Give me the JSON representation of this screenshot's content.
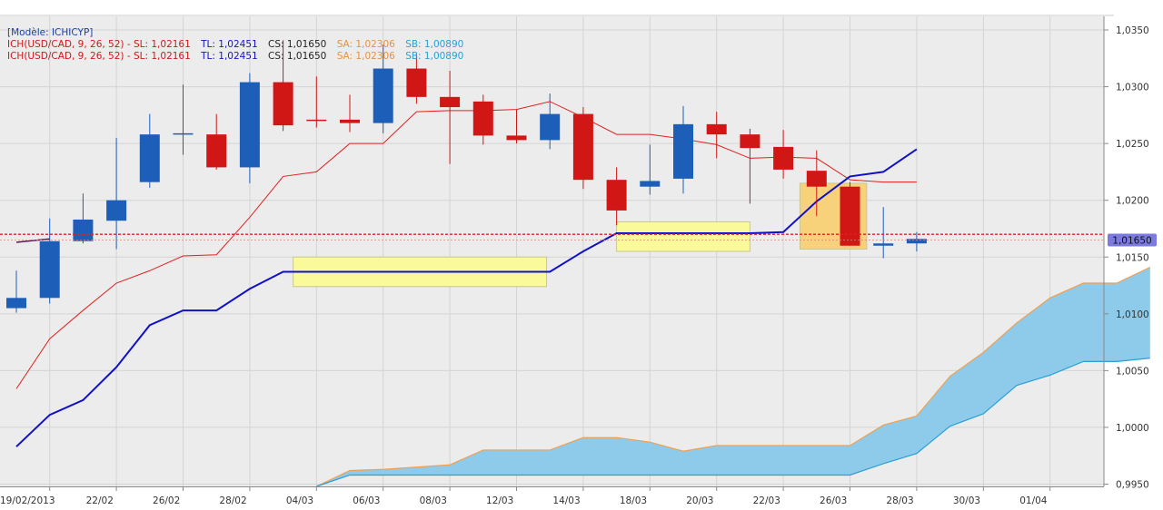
{
  "header": {
    "model_label": "[Modèle: ICHICYP]"
  },
  "legend": [
    {
      "prefix": "ICH(USD/CAD, 9, 26, 52) - ",
      "sl": "SL: 1,02161",
      "tl": "TL: 1,02451",
      "cs": "CS: 1,01650",
      "sa": "SA: 1,02306",
      "sb": "SB: 1,00890"
    },
    {
      "prefix": "ICH(USD/CAD, 9, 26, 52) - ",
      "sl": "SL: 1,02161",
      "tl": "TL: 1,02451",
      "cs": "CS: 1,01650",
      "sa": "SA: 1,02306",
      "sb": "SB: 1,00890"
    }
  ],
  "colors": {
    "bull": "#1d5fb8",
    "bear": "#d11616",
    "tenkan": "#e02020",
    "kijun": "#1010c8",
    "cloud_fill": "#8ecbea",
    "span_a": "#f0a050",
    "span_b": "#2a9fd6",
    "highlight_yellow": "#fafa9a",
    "highlight_orange": "#f8d27a",
    "price_line": "#e02020",
    "current_price_bg": "#7a7ae0",
    "grid": "#d4d4d4"
  },
  "current_price_label": "1,01650",
  "chart_data": {
    "type": "candlestick",
    "instrument": "USD/CAD",
    "ylim": [
      0.9948,
      1.0362
    ],
    "y_ticks": [
      0.995,
      1.0,
      1.005,
      1.01,
      1.015,
      1.02,
      1.025,
      1.03,
      1.035
    ],
    "y_tick_labels": [
      "0,9950",
      "1,0000",
      "1,0050",
      "1,0100",
      "1,0150",
      "1,0200",
      "1,0250",
      "1,0300",
      "1,0350"
    ],
    "x_tick_labels": [
      "19/02/2013",
      "22/02",
      "26/02",
      "28/02",
      "04/03",
      "06/03",
      "08/03",
      "12/03",
      "14/03",
      "18/03",
      "20/03",
      "22/03",
      "26/03",
      "28/03",
      "30/03",
      "01/04"
    ],
    "x_tick_index": [
      0,
      2,
      4,
      6,
      8,
      10,
      12,
      14,
      16,
      18,
      20,
      22,
      24,
      26,
      28,
      30
    ],
    "candles": [
      {
        "o": 1.0105,
        "h": 1.0138,
        "l": 1.0101,
        "c": 1.0114
      },
      {
        "o": 1.0114,
        "h": 1.0184,
        "l": 1.0109,
        "c": 1.0164
      },
      {
        "o": 1.0164,
        "h": 1.0206,
        "l": 1.0162,
        "c": 1.0183
      },
      {
        "o": 1.0182,
        "h": 1.0255,
        "l": 1.0157,
        "c": 1.02
      },
      {
        "o": 1.0216,
        "h": 1.0276,
        "l": 1.0211,
        "c": 1.0258
      },
      {
        "o": 1.0259,
        "h": 1.0302,
        "l": 1.024,
        "c": 1.0259
      },
      {
        "o": 1.0258,
        "h": 1.0276,
        "l": 1.0227,
        "c": 1.0229
      },
      {
        "o": 1.0229,
        "h": 1.0312,
        "l": 1.0215,
        "c": 1.0304
      },
      {
        "o": 1.0304,
        "h": 1.0341,
        "l": 1.0261,
        "c": 1.0266
      },
      {
        "o": 1.0271,
        "h": 1.0309,
        "l": 1.0264,
        "c": 1.027
      },
      {
        "o": 1.0271,
        "h": 1.0293,
        "l": 1.026,
        "c": 1.0268
      },
      {
        "o": 1.0268,
        "h": 1.0337,
        "l": 1.0259,
        "c": 1.0316
      },
      {
        "o": 1.0316,
        "h": 1.0328,
        "l": 1.0285,
        "c": 1.0291
      },
      {
        "o": 1.0291,
        "h": 1.0314,
        "l": 1.0232,
        "c": 1.0282
      },
      {
        "o": 1.0287,
        "h": 1.0293,
        "l": 1.0249,
        "c": 1.0257
      },
      {
        "o": 1.0257,
        "h": 1.028,
        "l": 1.025,
        "c": 1.0253
      },
      {
        "o": 1.0253,
        "h": 1.0294,
        "l": 1.0245,
        "c": 1.0276
      },
      {
        "o": 1.0276,
        "h": 1.0282,
        "l": 1.021,
        "c": 1.0218
      },
      {
        "o": 1.0218,
        "h": 1.0229,
        "l": 1.0178,
        "c": 1.0191
      },
      {
        "o": 1.0212,
        "h": 1.0249,
        "l": 1.0205,
        "c": 1.0217
      },
      {
        "o": 1.0219,
        "h": 1.0283,
        "l": 1.0206,
        "c": 1.0267
      },
      {
        "o": 1.0267,
        "h": 1.0278,
        "l": 1.0237,
        "c": 1.0258
      },
      {
        "o": 1.0258,
        "h": 1.0263,
        "l": 1.0197,
        "c": 1.0246
      },
      {
        "o": 1.0247,
        "h": 1.0262,
        "l": 1.0219,
        "c": 1.0227
      },
      {
        "o": 1.0226,
        "h": 1.0244,
        "l": 1.0186,
        "c": 1.0212
      },
      {
        "o": 1.0212,
        "h": 1.0216,
        "l": 1.016,
        "c": 1.016
      },
      {
        "o": 1.016,
        "h": 1.0194,
        "l": 1.0149,
        "c": 1.0162
      },
      {
        "o": 1.0162,
        "h": 1.0172,
        "l": 1.0155,
        "c": 1.0166
      }
    ],
    "tenkan_sen": [
      1.0034,
      1.0078,
      1.0103,
      1.0127,
      1.0138,
      1.0151,
      1.0152,
      1.0185,
      1.0221,
      1.0225,
      1.025,
      1.025,
      1.0278,
      1.0279,
      1.0279,
      1.028,
      1.0287,
      1.0273,
      1.0258,
      1.0258,
      1.0254,
      1.0249,
      1.0237,
      1.0238,
      1.0237,
      1.0218,
      1.0216,
      1.0216
    ],
    "kijun_sen": [
      0.9983,
      1.0011,
      1.0024,
      1.0053,
      1.009,
      1.0103,
      1.0103,
      1.0122,
      1.0137,
      1.0137,
      1.0137,
      1.0137,
      1.0137,
      1.0137,
      1.0137,
      1.0137,
      1.0137,
      1.0155,
      1.0171,
      1.0171,
      1.0171,
      1.0171,
      1.0171,
      1.0172,
      1.0199,
      1.0221,
      1.0225,
      1.0245
    ],
    "chikou_span": {
      "start_index": 0,
      "values": [
        1.0163,
        1.0166
      ]
    },
    "senkou_span_a": [
      null,
      null,
      null,
      null,
      null,
      null,
      null,
      null,
      null,
      0.9948,
      0.9962,
      0.9963,
      0.9965,
      0.9967,
      0.998,
      0.998,
      0.998,
      0.9991,
      0.9991,
      0.9987,
      0.9979,
      0.9984,
      0.9984,
      0.9984,
      0.9984,
      0.9984,
      1.0002,
      1.001,
      1.0045,
      1.0066,
      1.0092,
      1.0114,
      1.0127,
      1.0127,
      1.0141
    ],
    "senkou_span_b": [
      null,
      null,
      null,
      null,
      null,
      null,
      null,
      null,
      null,
      0.9948,
      0.9958,
      0.9958,
      0.9958,
      0.9958,
      0.9958,
      0.9958,
      0.9958,
      0.9958,
      0.9958,
      0.9958,
      0.9958,
      0.9958,
      0.9958,
      0.9958,
      0.9958,
      0.9958,
      0.9968,
      0.9977,
      1.0001,
      1.0012,
      1.0037,
      1.0046,
      1.0058,
      1.0058,
      1.0061
    ],
    "current_price": 1.0165,
    "price_line_level": 1.017,
    "highlights": [
      {
        "color": "yellow",
        "from_index": 8.3,
        "to_index": 15.9,
        "y_low": 1.0124,
        "y_high": 1.015
      },
      {
        "color": "yellow",
        "from_index": 18.0,
        "to_index": 22.0,
        "y_low": 1.0155,
        "y_high": 1.0181
      },
      {
        "color": "orange",
        "from_index": 23.5,
        "to_index": 25.5,
        "y_low": 1.0157,
        "y_high": 1.0215
      }
    ]
  }
}
